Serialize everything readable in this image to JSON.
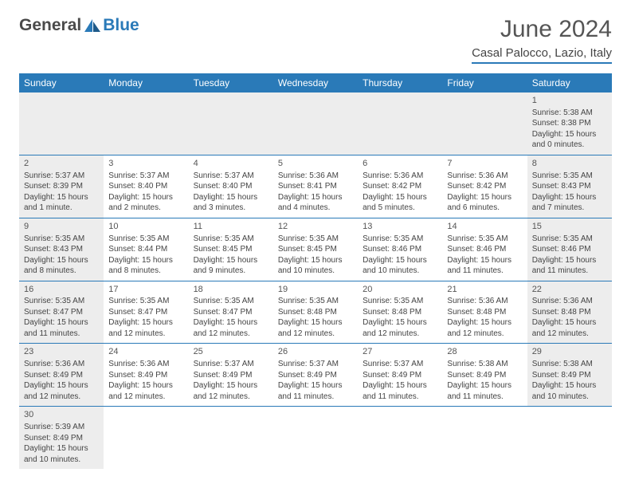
{
  "logo": {
    "text_dark": "General",
    "text_blue": "Blue",
    "shape_color": "#2a7ab8"
  },
  "title": {
    "month": "June 2024",
    "location": "Casal Palocco, Lazio, Italy"
  },
  "colors": {
    "header_bg": "#2a7ab8",
    "header_text": "#ffffff",
    "shade_bg": "#ededed",
    "border": "#2a7ab8",
    "text": "#444444"
  },
  "day_headers": [
    "Sunday",
    "Monday",
    "Tuesday",
    "Wednesday",
    "Thursday",
    "Friday",
    "Saturday"
  ],
  "weeks": [
    [
      {
        "empty": true,
        "shaded": true
      },
      {
        "empty": true,
        "shaded": true
      },
      {
        "empty": true,
        "shaded": true
      },
      {
        "empty": true,
        "shaded": true
      },
      {
        "empty": true,
        "shaded": true
      },
      {
        "empty": true,
        "shaded": true
      },
      {
        "day": 1,
        "shaded": true,
        "sunrise": "5:38 AM",
        "sunset": "8:38 PM",
        "daylight": "15 hours and 0 minutes."
      }
    ],
    [
      {
        "day": 2,
        "shaded": true,
        "sunrise": "5:37 AM",
        "sunset": "8:39 PM",
        "daylight": "15 hours and 1 minute."
      },
      {
        "day": 3,
        "sunrise": "5:37 AM",
        "sunset": "8:40 PM",
        "daylight": "15 hours and 2 minutes."
      },
      {
        "day": 4,
        "sunrise": "5:37 AM",
        "sunset": "8:40 PM",
        "daylight": "15 hours and 3 minutes."
      },
      {
        "day": 5,
        "sunrise": "5:36 AM",
        "sunset": "8:41 PM",
        "daylight": "15 hours and 4 minutes."
      },
      {
        "day": 6,
        "sunrise": "5:36 AM",
        "sunset": "8:42 PM",
        "daylight": "15 hours and 5 minutes."
      },
      {
        "day": 7,
        "sunrise": "5:36 AM",
        "sunset": "8:42 PM",
        "daylight": "15 hours and 6 minutes."
      },
      {
        "day": 8,
        "shaded": true,
        "sunrise": "5:35 AM",
        "sunset": "8:43 PM",
        "daylight": "15 hours and 7 minutes."
      }
    ],
    [
      {
        "day": 9,
        "shaded": true,
        "sunrise": "5:35 AM",
        "sunset": "8:43 PM",
        "daylight": "15 hours and 8 minutes."
      },
      {
        "day": 10,
        "sunrise": "5:35 AM",
        "sunset": "8:44 PM",
        "daylight": "15 hours and 8 minutes."
      },
      {
        "day": 11,
        "sunrise": "5:35 AM",
        "sunset": "8:45 PM",
        "daylight": "15 hours and 9 minutes."
      },
      {
        "day": 12,
        "sunrise": "5:35 AM",
        "sunset": "8:45 PM",
        "daylight": "15 hours and 10 minutes."
      },
      {
        "day": 13,
        "sunrise": "5:35 AM",
        "sunset": "8:46 PM",
        "daylight": "15 hours and 10 minutes."
      },
      {
        "day": 14,
        "sunrise": "5:35 AM",
        "sunset": "8:46 PM",
        "daylight": "15 hours and 11 minutes."
      },
      {
        "day": 15,
        "shaded": true,
        "sunrise": "5:35 AM",
        "sunset": "8:46 PM",
        "daylight": "15 hours and 11 minutes."
      }
    ],
    [
      {
        "day": 16,
        "shaded": true,
        "sunrise": "5:35 AM",
        "sunset": "8:47 PM",
        "daylight": "15 hours and 11 minutes."
      },
      {
        "day": 17,
        "sunrise": "5:35 AM",
        "sunset": "8:47 PM",
        "daylight": "15 hours and 12 minutes."
      },
      {
        "day": 18,
        "sunrise": "5:35 AM",
        "sunset": "8:47 PM",
        "daylight": "15 hours and 12 minutes."
      },
      {
        "day": 19,
        "sunrise": "5:35 AM",
        "sunset": "8:48 PM",
        "daylight": "15 hours and 12 minutes."
      },
      {
        "day": 20,
        "sunrise": "5:35 AM",
        "sunset": "8:48 PM",
        "daylight": "15 hours and 12 minutes."
      },
      {
        "day": 21,
        "sunrise": "5:36 AM",
        "sunset": "8:48 PM",
        "daylight": "15 hours and 12 minutes."
      },
      {
        "day": 22,
        "shaded": true,
        "sunrise": "5:36 AM",
        "sunset": "8:48 PM",
        "daylight": "15 hours and 12 minutes."
      }
    ],
    [
      {
        "day": 23,
        "shaded": true,
        "sunrise": "5:36 AM",
        "sunset": "8:49 PM",
        "daylight": "15 hours and 12 minutes."
      },
      {
        "day": 24,
        "sunrise": "5:36 AM",
        "sunset": "8:49 PM",
        "daylight": "15 hours and 12 minutes."
      },
      {
        "day": 25,
        "sunrise": "5:37 AM",
        "sunset": "8:49 PM",
        "daylight": "15 hours and 12 minutes."
      },
      {
        "day": 26,
        "sunrise": "5:37 AM",
        "sunset": "8:49 PM",
        "daylight": "15 hours and 11 minutes."
      },
      {
        "day": 27,
        "sunrise": "5:37 AM",
        "sunset": "8:49 PM",
        "daylight": "15 hours and 11 minutes."
      },
      {
        "day": 28,
        "sunrise": "5:38 AM",
        "sunset": "8:49 PM",
        "daylight": "15 hours and 11 minutes."
      },
      {
        "day": 29,
        "shaded": true,
        "sunrise": "5:38 AM",
        "sunset": "8:49 PM",
        "daylight": "15 hours and 10 minutes."
      }
    ],
    [
      {
        "day": 30,
        "shaded": true,
        "sunrise": "5:39 AM",
        "sunset": "8:49 PM",
        "daylight": "15 hours and 10 minutes."
      },
      {
        "empty": true
      },
      {
        "empty": true
      },
      {
        "empty": true
      },
      {
        "empty": true
      },
      {
        "empty": true
      },
      {
        "empty": true
      }
    ]
  ],
  "labels": {
    "sunrise": "Sunrise:",
    "sunset": "Sunset:",
    "daylight": "Daylight:"
  }
}
